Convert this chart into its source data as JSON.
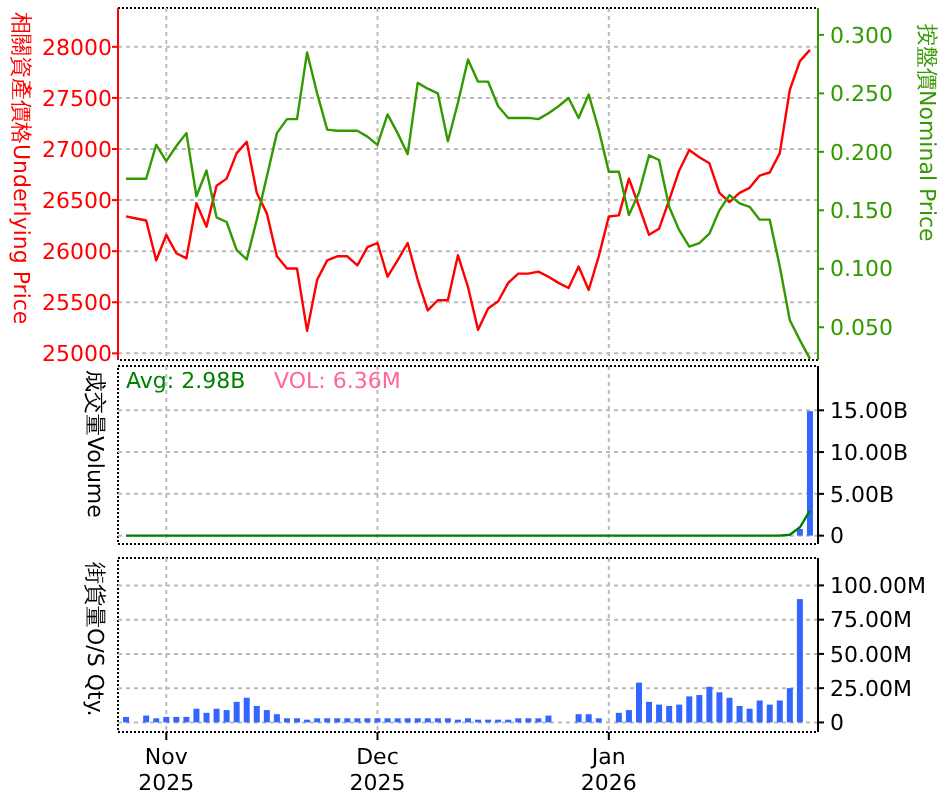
{
  "chart_data": [
    {
      "type": "line",
      "ylabel": "相關資產價格Underlying Price",
      "y2label": "按盤價Nominal Price",
      "categories": [
        null,
        null,
        null,
        null,
        null,
        null,
        null,
        null,
        null,
        null,
        null,
        null,
        null,
        null,
        null,
        null,
        null,
        null,
        null,
        null,
        null,
        null,
        null,
        null,
        null,
        null,
        null,
        null,
        null,
        null,
        null,
        null,
        null,
        null,
        null,
        null,
        null,
        null,
        null,
        null,
        null,
        null,
        null,
        null,
        null,
        null,
        null,
        null,
        null,
        null,
        null,
        null,
        null,
        null,
        null,
        null,
        null,
        null,
        null,
        null,
        null,
        null,
        null,
        null,
        null,
        null,
        null,
        null,
        null
      ],
      "series": [
        {
          "color": "#ff0000",
          "values": [
            26340,
            26320,
            26300,
            25910,
            26160,
            25980,
            25930,
            26470,
            26240,
            26640,
            26710,
            26960,
            27070,
            26570,
            26370,
            25950,
            25830,
            25830,
            25220,
            25720,
            25910,
            25950,
            25950,
            25860,
            26040,
            26080,
            25750,
            25910,
            26080,
            25720,
            25420,
            25520,
            25520,
            25960,
            25650,
            25230,
            25440,
            25510,
            25690,
            25780,
            25780,
            25800,
            25750,
            25690,
            25640,
            25850,
            25620,
            25950,
            26340,
            26350,
            26710,
            26440,
            26160,
            26220,
            26500,
            26790,
            26990,
            26920,
            26860,
            26570,
            26480,
            26570,
            26620,
            26740,
            26770,
            26960,
            27580,
            27860,
            27970
          ]
        },
        {
          "color": "#339900",
          "axis": "y2",
          "values": [
            0.177,
            0.177,
            0.177,
            0.206,
            0.192,
            0.205,
            0.216,
            0.162,
            0.184,
            0.144,
            0.14,
            0.116,
            0.108,
            0.142,
            0.179,
            0.216,
            0.228,
            0.228,
            0.285,
            0.25,
            0.219,
            0.218,
            0.218,
            0.218,
            0.213,
            0.206,
            0.232,
            0.216,
            0.198,
            0.259,
            0.254,
            0.25,
            0.209,
            0.242,
            0.279,
            0.26,
            0.26,
            0.239,
            0.229,
            0.229,
            0.229,
            0.228,
            0.233,
            0.239,
            0.246,
            0.229,
            0.249,
            0.219,
            0.183,
            0.183,
            0.146,
            0.165,
            0.197,
            0.193,
            0.153,
            0.133,
            0.119,
            0.122,
            0.13,
            0.15,
            0.163,
            0.156,
            0.153,
            0.142,
            0.142,
            0.102,
            0.056,
            0.039,
            0.023
          ]
        }
      ],
      "ylim": [
        24935,
        28380
      ],
      "yticks": [
        25000,
        25500,
        26000,
        26500,
        27000,
        27500,
        28000
      ],
      "y2lim": [
        0.022,
        0.323
      ],
      "y2ticks": [
        {
          "value": 0.05,
          "label": "0.050"
        },
        {
          "value": 0.1,
          "label": "0.100"
        },
        {
          "value": 0.15,
          "label": "0.150"
        },
        {
          "value": 0.2,
          "label": "0.200"
        },
        {
          "value": 0.25,
          "label": "0.250"
        },
        {
          "value": 0.3,
          "label": "0.300"
        }
      ],
      "grid": true,
      "tick_labels": "y"
    },
    {
      "type": "bar",
      "ylabel": "成交量Volume",
      "annotations": [
        "Avg: 2.98B",
        "VOL: 6.36M"
      ],
      "categories": [
        null,
        null,
        null,
        null,
        null,
        null,
        null,
        null,
        null,
        null,
        null,
        null,
        null,
        null,
        null,
        null,
        null,
        null,
        null,
        null,
        null,
        null,
        null,
        null,
        null,
        null,
        null,
        null,
        null,
        null,
        null,
        null,
        null,
        null,
        null,
        null,
        null,
        null,
        null,
        null,
        null,
        null,
        null,
        null,
        null,
        null,
        null,
        null,
        null,
        null,
        null,
        null,
        null,
        null,
        null,
        null,
        null,
        null,
        null,
        null,
        null,
        null,
        null,
        null,
        null,
        null,
        null,
        null,
        null
      ],
      "series": [
        {
          "color": "#3366ff",
          "values": [
            0,
            0,
            0,
            0,
            0,
            0,
            0,
            0,
            0,
            0,
            0,
            0,
            0,
            0,
            0,
            0,
            0,
            0,
            0,
            0,
            0,
            0,
            0,
            0,
            0,
            0,
            0,
            0,
            0,
            0,
            0,
            0,
            0,
            0,
            0,
            0,
            0,
            0,
            0,
            0,
            0,
            0,
            0,
            0,
            0,
            0,
            0,
            0,
            0,
            0,
            0,
            0,
            0,
            0,
            0,
            0,
            0,
            0,
            0,
            0,
            0,
            0,
            0,
            0,
            0,
            0,
            null,
            0.8,
            14.9
          ]
        },
        {
          "type": "line",
          "color": "#008000",
          "values": [
            0,
            0,
            0,
            0,
            0,
            0,
            0,
            0,
            0,
            0,
            0,
            0,
            0,
            0,
            0,
            0,
            0,
            0,
            0,
            0,
            0,
            0,
            0,
            0,
            0,
            0,
            0,
            0,
            0,
            0,
            0,
            0,
            0,
            0,
            0,
            0,
            0,
            0,
            0,
            0,
            0,
            0,
            0,
            0,
            0,
            0,
            0,
            0,
            0,
            0,
            0,
            0,
            0,
            0,
            0,
            0,
            0,
            0,
            0,
            0,
            0,
            0,
            0,
            0,
            0,
            0,
            0.1,
            1.0,
            3.0
          ]
        }
      ],
      "ylim": [
        -1,
        20.3
      ],
      "yticks": [
        0,
        {
          "value": 5,
          "label": "5.00B"
        },
        {
          "value": 10,
          "label": "10.00B"
        },
        {
          "value": 15,
          "label": "15.00B"
        }
      ],
      "grid": true,
      "tick_labels": "y"
    },
    {
      "type": "bar",
      "ylabel": "街貨量O/S Qty.",
      "categories": [
        null,
        null,
        null,
        null,
        "Nov 2025",
        null,
        null,
        null,
        null,
        null,
        null,
        null,
        null,
        null,
        null,
        null,
        null,
        null,
        null,
        null,
        null,
        null,
        null,
        null,
        null,
        "Dec 2025",
        null,
        null,
        null,
        null,
        null,
        null,
        null,
        null,
        null,
        null,
        null,
        null,
        null,
        null,
        null,
        null,
        null,
        null,
        null,
        null,
        null,
        null,
        "Jan 2026",
        null,
        null,
        null,
        null,
        null,
        null,
        null,
        null,
        null,
        null,
        null,
        null,
        null,
        null,
        null,
        null,
        null,
        null,
        null,
        null
      ],
      "series": [
        {
          "color": "#3366ff",
          "values": [
            4,
            0,
            5,
            3,
            4,
            4,
            4,
            10,
            7,
            10,
            9,
            15,
            18,
            12,
            9,
            6,
            3,
            3,
            2,
            3,
            3,
            3,
            3,
            3,
            3,
            3,
            3,
            3,
            3,
            3,
            3,
            3,
            3,
            2,
            3,
            2,
            2,
            2,
            2,
            3,
            3,
            3,
            5,
            0,
            0,
            6,
            6,
            3,
            0,
            7,
            9,
            29,
            15,
            13,
            12,
            13,
            19,
            20,
            26,
            22,
            18,
            12,
            10,
            16,
            13,
            16,
            25,
            90,
            null
          ]
        }
      ],
      "ylim": [
        -7,
        120
      ],
      "yticks": [
        0,
        {
          "value": 25,
          "label": "25.00M"
        },
        {
          "value": 50,
          "label": "50.00M"
        },
        {
          "value": 75,
          "label": "75.00M"
        },
        {
          "value": 100,
          "label": "100.00M"
        }
      ],
      "grid": true
    }
  ]
}
